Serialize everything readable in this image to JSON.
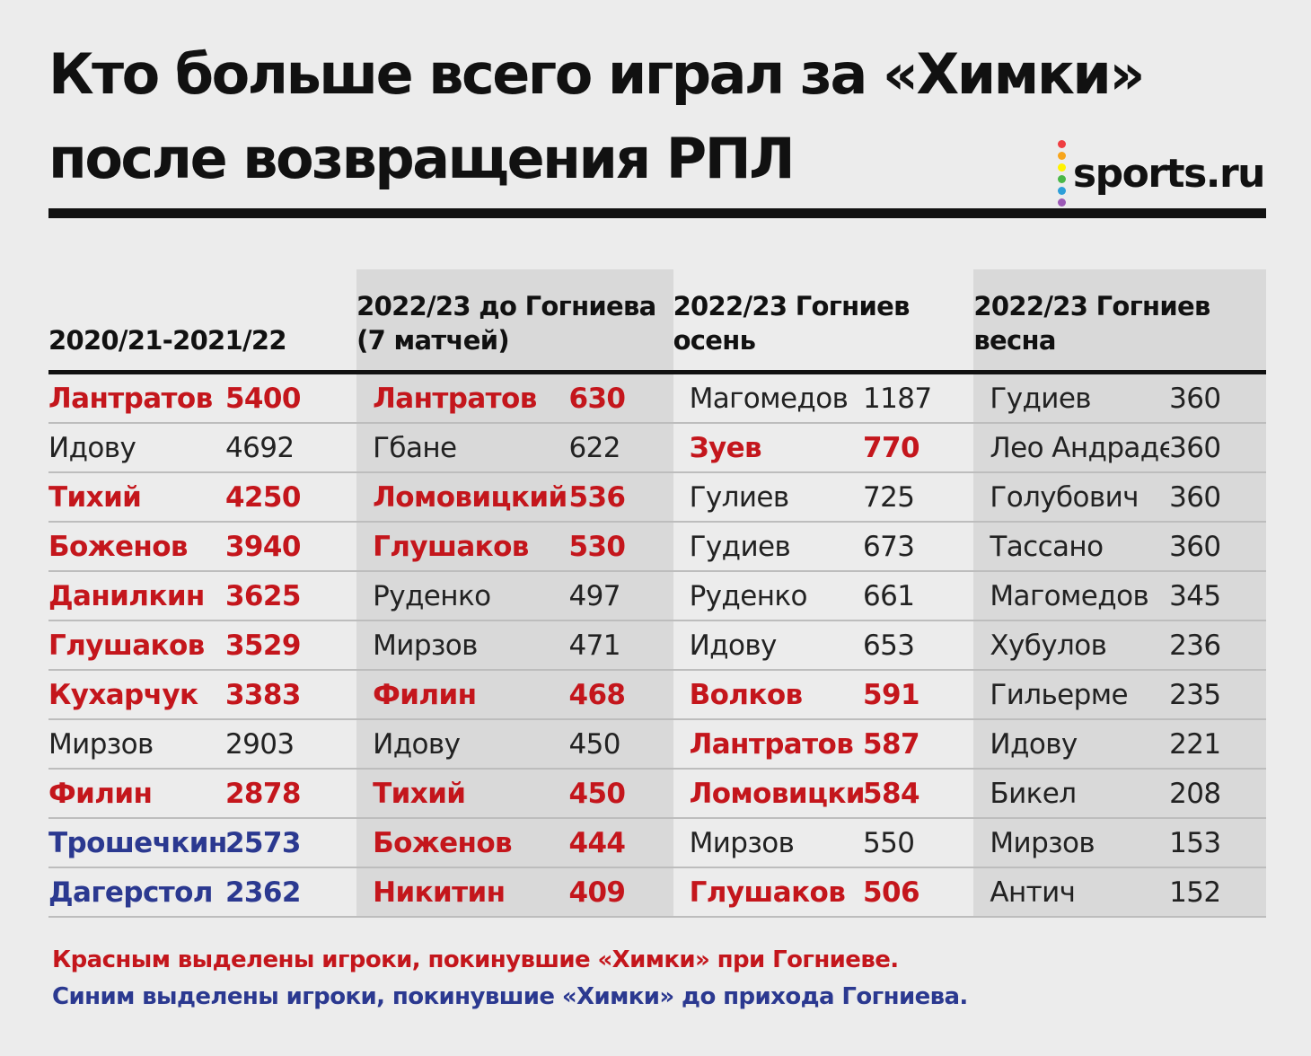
{
  "title": {
    "line1": "Кто больше всего играл за «Химки»",
    "line2": "после возвращения РПЛ"
  },
  "logo": {
    "text": "sports.ru",
    "dot_colors": [
      "#ef3e42",
      "#f7a51c",
      "#fff200",
      "#4ab848",
      "#2e9fd9",
      "#9b59b6"
    ]
  },
  "colors": {
    "red": "#c4161c",
    "blue": "#2b3990",
    "default": "#222222",
    "shade": "#d9d9d9",
    "background": "#ececec"
  },
  "chart_data": {
    "type": "table",
    "columns": [
      {
        "header": [
          "",
          "2020/21-2021/22"
        ],
        "shaded": false,
        "rows": [
          {
            "name": "Лантратов",
            "value": 5400,
            "color": "red"
          },
          {
            "name": "Идову",
            "value": 4692,
            "color": "default"
          },
          {
            "name": "Тихий",
            "value": 4250,
            "color": "red"
          },
          {
            "name": "Боженов",
            "value": 3940,
            "color": "red"
          },
          {
            "name": "Данилкин",
            "value": 3625,
            "color": "red"
          },
          {
            "name": "Глушаков",
            "value": 3529,
            "color": "red"
          },
          {
            "name": "Кухарчук",
            "value": 3383,
            "color": "red"
          },
          {
            "name": "Мирзов",
            "value": 2903,
            "color": "default"
          },
          {
            "name": "Филин",
            "value": 2878,
            "color": "red"
          },
          {
            "name": "Трошечкин",
            "value": 2573,
            "color": "blue"
          },
          {
            "name": "Дагерстол",
            "value": 2362,
            "color": "blue"
          }
        ]
      },
      {
        "header": [
          "2022/23 до Гогниева",
          "(7 матчей)"
        ],
        "shaded": true,
        "rows": [
          {
            "name": "Лантратов",
            "value": 630,
            "color": "red"
          },
          {
            "name": "Гбане",
            "value": 622,
            "color": "default"
          },
          {
            "name": "Ломовицкий",
            "value": 536,
            "color": "red"
          },
          {
            "name": "Глушаков",
            "value": 530,
            "color": "red"
          },
          {
            "name": "Руденко",
            "value": 497,
            "color": "default"
          },
          {
            "name": "Мирзов",
            "value": 471,
            "color": "default"
          },
          {
            "name": "Филин",
            "value": 468,
            "color": "red"
          },
          {
            "name": "Идову",
            "value": 450,
            "color": "default"
          },
          {
            "name": "Тихий",
            "value": 450,
            "color": "red"
          },
          {
            "name": "Боженов",
            "value": 444,
            "color": "red"
          },
          {
            "name": "Никитин",
            "value": 409,
            "color": "red"
          }
        ]
      },
      {
        "header": [
          "2022/23 Гогниев",
          "осень"
        ],
        "shaded": false,
        "rows": [
          {
            "name": "Магомедов",
            "value": 1187,
            "color": "default"
          },
          {
            "name": "Зуев",
            "value": 770,
            "color": "red"
          },
          {
            "name": "Гулиев",
            "value": 725,
            "color": "default"
          },
          {
            "name": "Гудиев",
            "value": 673,
            "color": "default"
          },
          {
            "name": "Руденко",
            "value": 661,
            "color": "default"
          },
          {
            "name": "Идову",
            "value": 653,
            "color": "default"
          },
          {
            "name": "Волков",
            "value": 591,
            "color": "red"
          },
          {
            "name": "Лантратов",
            "value": 587,
            "color": "red"
          },
          {
            "name": "Ломовицкий",
            "value": 584,
            "color": "red"
          },
          {
            "name": "Мирзов",
            "value": 550,
            "color": "default"
          },
          {
            "name": "Глушаков",
            "value": 506,
            "color": "red"
          }
        ]
      },
      {
        "header": [
          "2022/23 Гогниев",
          "весна"
        ],
        "shaded": true,
        "rows": [
          {
            "name": "Гудиев",
            "value": 360,
            "color": "default"
          },
          {
            "name": "Лео Андраде",
            "value": 360,
            "color": "default"
          },
          {
            "name": "Голубович",
            "value": 360,
            "color": "default"
          },
          {
            "name": "Тассано",
            "value": 360,
            "color": "default"
          },
          {
            "name": "Магомедов",
            "value": 345,
            "color": "default"
          },
          {
            "name": "Хубулов",
            "value": 236,
            "color": "default"
          },
          {
            "name": "Гильерме",
            "value": 235,
            "color": "default"
          },
          {
            "name": "Идову",
            "value": 221,
            "color": "default"
          },
          {
            "name": "Бикел",
            "value": 208,
            "color": "default"
          },
          {
            "name": "Мирзов",
            "value": 153,
            "color": "default"
          },
          {
            "name": "Антич",
            "value": 152,
            "color": "default"
          }
        ]
      }
    ]
  },
  "legend": {
    "red": "Красным выделены игроки, покинувшие «Химки» при Гогниеве.",
    "blue": "Синим выделены игроки, покинувшие «Химки» до прихода Гогниева."
  }
}
